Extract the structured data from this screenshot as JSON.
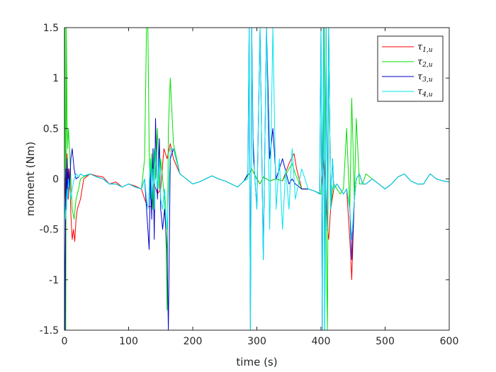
{
  "chart_data": {
    "type": "line",
    "title": "",
    "xlabel": "time (s)",
    "ylabel": "moment (Nm)",
    "xlim": [
      0,
      600
    ],
    "ylim": [
      -1.5,
      1.5
    ],
    "xticks": [
      0,
      100,
      200,
      300,
      400,
      500,
      600
    ],
    "xtick_labels": [
      "0",
      "100",
      "200",
      "300",
      "400",
      "500",
      "600"
    ],
    "yticks": [
      -1.5,
      -1,
      -0.5,
      0,
      0.5,
      1,
      1.5
    ],
    "ytick_labels": [
      "-1.5",
      "-1",
      "-0.5",
      "0",
      "0.5",
      "1",
      "1.5"
    ],
    "grid": false,
    "legend_position": "top-right",
    "series": [
      {
        "name": "τ1,u",
        "label_main": "τ",
        "label_sub": "1,u",
        "color": "#ff0000",
        "x": [
          0,
          2,
          4,
          6,
          8,
          10,
          12,
          14,
          16,
          18,
          20,
          25,
          30,
          40,
          50,
          60,
          70,
          80,
          90,
          100,
          110,
          120,
          125,
          128,
          130,
          133,
          136,
          140,
          145,
          150,
          155,
          160,
          165,
          170,
          180,
          190,
          200,
          210,
          220,
          230,
          240,
          250,
          260,
          270,
          280,
          288,
          292,
          296,
          300,
          305,
          310,
          320,
          330,
          340,
          350,
          355,
          358,
          362,
          370,
          380,
          390,
          400,
          405,
          408,
          410,
          412,
          415,
          420,
          425,
          430,
          435,
          440,
          445,
          448,
          452,
          455,
          460,
          465,
          470,
          480,
          490,
          500,
          510,
          520,
          530,
          540,
          550,
          560,
          570,
          580,
          590,
          600
        ],
        "y": [
          0.05,
          -0.3,
          0.25,
          -0.2,
          0.1,
          -0.35,
          -0.6,
          -0.5,
          -0.62,
          -0.4,
          -0.3,
          -0.2,
          0.0,
          0.05,
          0.03,
          0.02,
          -0.05,
          -0.03,
          -0.08,
          -0.05,
          -0.07,
          -0.1,
          -0.2,
          -0.25,
          -0.28,
          -0.27,
          -0.28,
          -0.05,
          -0.15,
          -0.1,
          0.3,
          0.2,
          0.35,
          0.2,
          0.05,
          0.0,
          -0.05,
          -0.03,
          0.0,
          0.03,
          0.0,
          -0.02,
          -0.05,
          -0.08,
          -0.02,
          0.05,
          0.1,
          0.05,
          0.0,
          -0.05,
          0.02,
          -0.02,
          0.0,
          -0.02,
          0.15,
          0.22,
          0.25,
          0.1,
          -0.1,
          -0.1,
          -0.12,
          -0.15,
          0.2,
          -0.2,
          -0.5,
          -0.6,
          -0.3,
          -0.1,
          -0.05,
          -0.1,
          -0.15,
          -0.1,
          -0.6,
          -1.0,
          -0.2,
          0.0,
          0.05,
          -0.05,
          -0.05,
          0.0,
          -0.05,
          -0.1,
          -0.05,
          0.02,
          0.05,
          -0.02,
          -0.05,
          -0.05,
          0.05,
          0.0,
          -0.02,
          -0.03
        ]
      },
      {
        "name": "τ2,u",
        "label_main": "τ",
        "label_sub": "2,u",
        "color": "#00e000",
        "x": [
          0,
          1,
          2,
          3,
          4,
          5,
          6,
          8,
          10,
          12,
          15,
          18,
          22,
          25,
          30,
          40,
          50,
          60,
          70,
          80,
          90,
          100,
          110,
          120,
          125,
          128,
          130,
          132,
          134,
          136,
          138,
          140,
          142,
          145,
          148,
          150,
          153,
          156,
          158,
          160,
          162,
          165,
          170,
          180,
          190,
          200,
          210,
          220,
          230,
          240,
          250,
          260,
          270,
          280,
          288,
          292,
          296,
          300,
          305,
          310,
          320,
          330,
          340,
          350,
          355,
          360,
          370,
          380,
          390,
          400,
          402,
          405,
          408,
          410,
          412,
          415,
          418,
          420,
          425,
          430,
          435,
          440,
          445,
          448,
          452,
          455,
          460,
          465,
          470,
          480,
          490,
          500,
          510,
          520,
          530,
          540,
          550,
          560,
          570,
          580,
          590,
          600
        ],
        "y": [
          0.3,
          1.5,
          -1.5,
          1.5,
          0.6,
          0.3,
          0.5,
          0.3,
          0.0,
          -0.3,
          -0.4,
          -0.2,
          -0.1,
          0.0,
          0.02,
          0.05,
          0.02,
          0.0,
          -0.05,
          -0.05,
          -0.08,
          -0.05,
          -0.08,
          -0.1,
          0.2,
          1.5,
          1.5,
          0.3,
          -0.2,
          0.25,
          -0.3,
          0.3,
          0.0,
          0.5,
          -0.1,
          0.2,
          0.0,
          -0.2,
          -0.5,
          -1.3,
          0.5,
          1.0,
          0.35,
          0.05,
          0.0,
          -0.05,
          -0.03,
          0.0,
          0.03,
          0.0,
          -0.02,
          -0.05,
          -0.08,
          -0.02,
          0.05,
          0.1,
          0.05,
          0.0,
          -0.05,
          0.02,
          -0.02,
          0.0,
          -0.02,
          0.1,
          0.15,
          0.05,
          -0.1,
          -0.1,
          -0.12,
          -0.15,
          0.2,
          1.5,
          -0.5,
          -1.5,
          1.5,
          -0.3,
          -0.1,
          -0.05,
          -0.1,
          -0.15,
          -0.1,
          0.5,
          -0.3,
          0.8,
          -0.2,
          0.6,
          -0.05,
          -0.05,
          0.05,
          0.0,
          -0.05,
          -0.1,
          -0.05,
          0.02,
          0.05,
          -0.02,
          -0.05,
          -0.05,
          0.05,
          0.0,
          -0.02,
          -0.03
        ]
      },
      {
        "name": "τ3,u",
        "label_main": "τ",
        "label_sub": "3,u",
        "color": "#0000cc",
        "x": [
          0,
          1,
          2,
          3,
          4,
          5,
          6,
          8,
          10,
          12,
          15,
          18,
          22,
          25,
          30,
          40,
          50,
          60,
          70,
          80,
          90,
          100,
          110,
          120,
          125,
          128,
          130,
          132,
          134,
          136,
          138,
          140,
          142,
          145,
          148,
          150,
          153,
          156,
          158,
          160,
          162,
          165,
          170,
          180,
          190,
          200,
          210,
          220,
          230,
          240,
          250,
          260,
          270,
          280,
          286,
          288,
          290,
          292,
          294,
          296,
          300,
          305,
          310,
          315,
          320,
          325,
          330,
          340,
          350,
          355,
          360,
          370,
          380,
          390,
          398,
          400,
          402,
          404,
          406,
          408,
          410,
          412,
          415,
          418,
          420,
          425,
          430,
          435,
          440,
          445,
          448,
          452,
          455,
          460,
          465,
          470,
          480,
          490,
          500,
          510,
          520,
          530,
          540,
          550,
          560,
          570,
          580,
          590,
          600
        ],
        "y": [
          -0.5,
          -1.5,
          0.1,
          -0.3,
          0.2,
          -0.2,
          0.1,
          -0.1,
          0.2,
          0.3,
          0.1,
          0.0,
          0.02,
          0.05,
          0.03,
          0.05,
          0.02,
          0.0,
          -0.05,
          -0.05,
          -0.08,
          -0.05,
          -0.08,
          -0.1,
          0.0,
          -0.3,
          -0.5,
          -0.7,
          0.1,
          -0.4,
          0.3,
          -0.6,
          0.6,
          -0.2,
          0.4,
          -0.3,
          -0.5,
          -0.3,
          -0.5,
          -0.7,
          -1.5,
          0.2,
          0.3,
          0.05,
          0.0,
          -0.05,
          -0.03,
          0.0,
          0.03,
          0.0,
          -0.02,
          -0.05,
          -0.08,
          -0.02,
          0.05,
          1.5,
          -1.5,
          1.5,
          0.4,
          0.1,
          -0.3,
          1.5,
          -0.8,
          1.5,
          0.2,
          0.5,
          0.0,
          0.2,
          -0.05,
          0.0,
          -0.05,
          -0.1,
          -0.1,
          -0.12,
          -0.15,
          1.5,
          -1.5,
          1.5,
          -1.5,
          1.5,
          -0.5,
          1.5,
          -0.3,
          0.2,
          -0.1,
          -0.05,
          -0.1,
          -0.15,
          -0.1,
          -0.3,
          -0.8,
          -0.2,
          0.0,
          0.05,
          -0.05,
          -0.05,
          0.0,
          -0.05,
          -0.1,
          -0.05,
          0.02,
          0.05,
          -0.02,
          -0.05,
          -0.05,
          0.05,
          0.0,
          -0.02,
          -0.03
        ]
      },
      {
        "name": "τ4,u",
        "label_main": "τ",
        "label_sub": "4,u",
        "color": "#00e5ee",
        "x": [
          0,
          1,
          2,
          3,
          4,
          5,
          6,
          8,
          10,
          12,
          15,
          18,
          22,
          25,
          30,
          40,
          50,
          60,
          70,
          80,
          90,
          100,
          110,
          120,
          125,
          128,
          130,
          132,
          134,
          136,
          138,
          140,
          142,
          145,
          148,
          150,
          153,
          156,
          158,
          160,
          162,
          165,
          170,
          180,
          190,
          200,
          210,
          220,
          230,
          240,
          250,
          260,
          270,
          280,
          286,
          288,
          290,
          292,
          294,
          296,
          300,
          305,
          310,
          315,
          320,
          325,
          330,
          335,
          340,
          345,
          350,
          355,
          360,
          370,
          380,
          390,
          398,
          400,
          402,
          404,
          406,
          408,
          410,
          412,
          415,
          418,
          420,
          425,
          430,
          435,
          440,
          445,
          448,
          452,
          455,
          460,
          465,
          470,
          480,
          490,
          500,
          510,
          520,
          530,
          540,
          550,
          560,
          570,
          580,
          590,
          600
        ],
        "y": [
          -0.2,
          -0.3,
          -0.4,
          -0.2,
          -0.1,
          -0.2,
          0.0,
          -0.1,
          -0.2,
          -0.1,
          0.0,
          0.05,
          0.02,
          0.05,
          0.03,
          0.05,
          0.02,
          0.0,
          -0.05,
          -0.05,
          -0.08,
          -0.05,
          -0.08,
          -0.1,
          0.0,
          -0.2,
          -0.3,
          -0.1,
          0.2,
          -0.2,
          0.1,
          -0.3,
          0.3,
          -0.1,
          0.2,
          -0.2,
          -0.3,
          -0.1,
          -0.3,
          -0.5,
          -0.2,
          0.3,
          0.3,
          0.05,
          0.0,
          -0.05,
          -0.03,
          0.0,
          0.03,
          0.0,
          -0.02,
          -0.05,
          -0.08,
          -0.02,
          0.0,
          1.5,
          -1.5,
          1.5,
          0.2,
          0.1,
          -0.3,
          1.5,
          -0.8,
          1.5,
          -0.5,
          1.5,
          -0.3,
          0.2,
          -0.5,
          0.1,
          -0.3,
          0.3,
          -0.2,
          0.1,
          -0.1,
          -0.12,
          -0.15,
          1.5,
          -1.5,
          1.5,
          -1.5,
          1.5,
          -0.5,
          1.5,
          -0.3,
          0.2,
          -0.1,
          -0.05,
          -0.1,
          -0.15,
          -0.1,
          -0.3,
          -0.6,
          -0.2,
          0.0,
          0.05,
          -0.05,
          -0.05,
          0.0,
          -0.05,
          -0.1,
          -0.05,
          0.02,
          0.05,
          -0.02,
          -0.05,
          -0.05,
          0.05,
          0.0,
          -0.02,
          -0.03
        ]
      }
    ]
  }
}
